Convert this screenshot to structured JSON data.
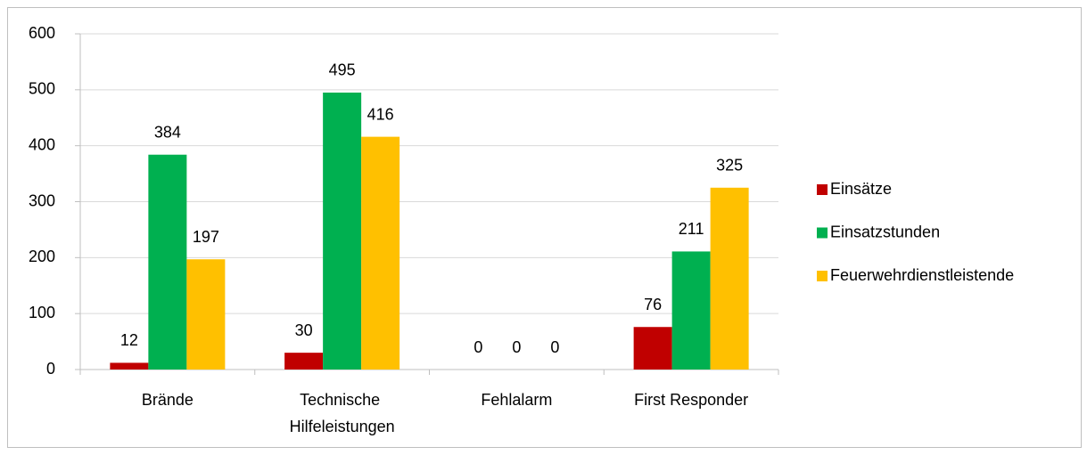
{
  "chart_data": {
    "type": "bar",
    "categories": [
      "Brände",
      "Technische Hilfeleistungen",
      "Fehlalarm",
      "First Responder"
    ],
    "series": [
      {
        "name": "Einsätze",
        "color": "#c00000",
        "values": [
          12,
          30,
          0,
          76
        ]
      },
      {
        "name": "Einsatzstunden",
        "color": "#00b050",
        "values": [
          384,
          495,
          0,
          211
        ]
      },
      {
        "name": "Feuerwehrdienstleistende",
        "color": "#ffc000",
        "values": [
          197,
          416,
          0,
          325
        ]
      }
    ],
    "ylim": [
      0,
      600
    ],
    "yticks": [
      0,
      100,
      200,
      300,
      400,
      500,
      600
    ],
    "grid": true,
    "legend": "right"
  }
}
